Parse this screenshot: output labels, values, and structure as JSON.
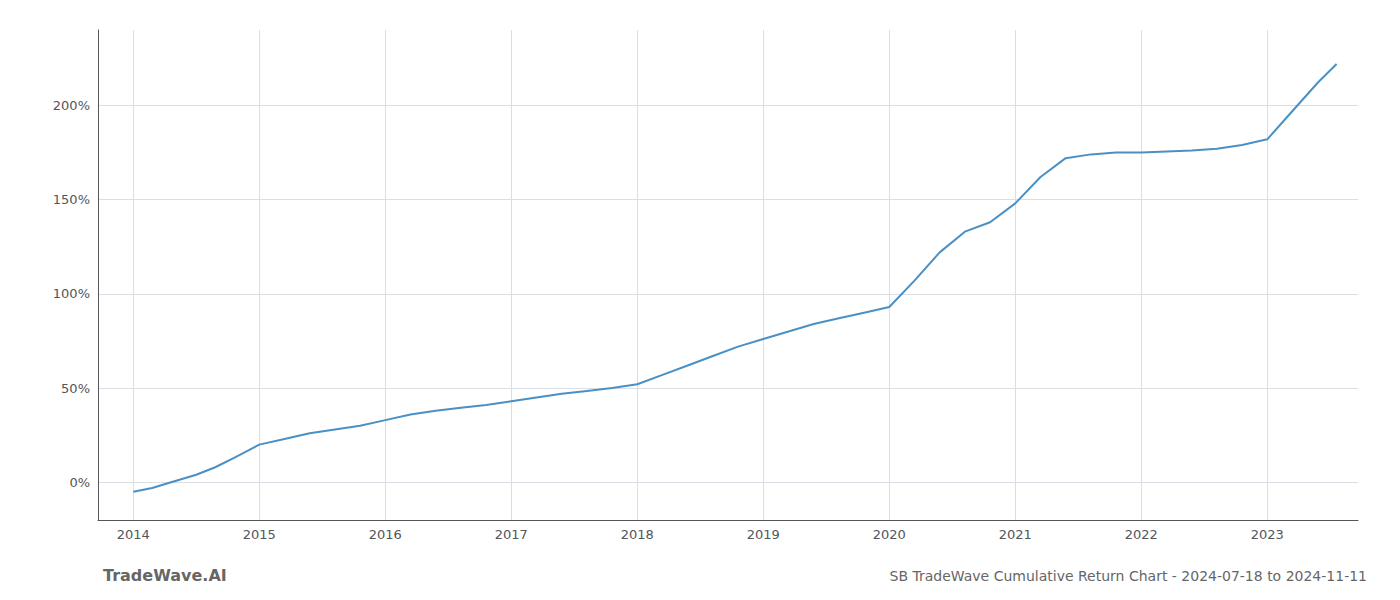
{
  "chart_data": {
    "type": "line",
    "title": "SB TradeWave Cumulative Return Chart - 2024-07-18 to 2024-11-11",
    "annotations": [
      "TradeWave.AI"
    ],
    "color": "#4a90c4",
    "grid": true,
    "x": [
      2014.0,
      2014.15,
      2014.3,
      2014.5,
      2014.65,
      2014.8,
      2015.0,
      2015.2,
      2015.4,
      2015.6,
      2015.8,
      2016.0,
      2016.2,
      2016.4,
      2016.6,
      2016.8,
      2017.0,
      2017.2,
      2017.4,
      2017.6,
      2017.8,
      2018.0,
      2018.2,
      2018.4,
      2018.6,
      2018.8,
      2019.0,
      2019.2,
      2019.4,
      2019.6,
      2019.8,
      2020.0,
      2020.2,
      2020.4,
      2020.6,
      2020.8,
      2021.0,
      2021.2,
      2021.4,
      2021.6,
      2021.8,
      2022.0,
      2022.2,
      2022.4,
      2022.6,
      2022.8,
      2023.0,
      2023.2,
      2023.4,
      2023.55
    ],
    "values": [
      -5.0,
      -3.0,
      0.0,
      4.0,
      8.0,
      13.0,
      20.0,
      23.0,
      26.0,
      28.0,
      30.0,
      33.0,
      36.0,
      38.0,
      39.5,
      41.0,
      43.0,
      45.0,
      47.0,
      48.5,
      50.0,
      52.0,
      57.0,
      62.0,
      67.0,
      72.0,
      76.0,
      80.0,
      84.0,
      87.0,
      90.0,
      93.0,
      107.0,
      122.0,
      133.0,
      138.0,
      148.0,
      162.0,
      172.0,
      174.0,
      175.0,
      175.0,
      175.5,
      176.0,
      177.0,
      179.0,
      182.0,
      197.0,
      212.0,
      222.0
    ],
    "xlim": [
      2013.72,
      2023.72
    ],
    "xticks": [
      2014,
      2015,
      2016,
      2017,
      2018,
      2019,
      2020,
      2021,
      2022,
      2023
    ],
    "ylim": [
      -20,
      240
    ],
    "yticks": [
      {
        "value": 0,
        "label": "0%"
      },
      {
        "value": 50,
        "label": "50%"
      },
      {
        "value": 100,
        "label": "100%"
      },
      {
        "value": 150,
        "label": "150%"
      },
      {
        "value": 200,
        "label": "200%"
      }
    ]
  }
}
